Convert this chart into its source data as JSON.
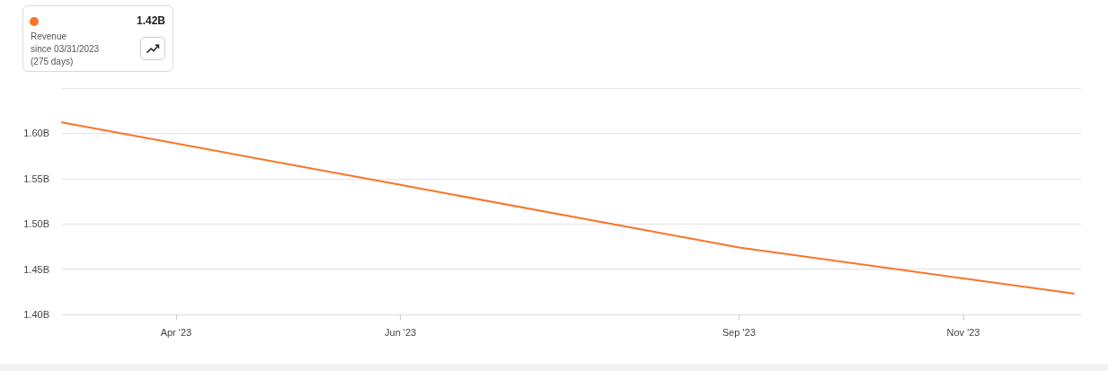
{
  "chart_data": {
    "type": "line",
    "annotations": [
      "1.42B",
      "Revenue",
      "since 03/31/2023",
      "(275 days)"
    ],
    "x": [
      "2023-03-01",
      "2023-06-01",
      "2023-09-01",
      "2023-12-01"
    ],
    "series": [
      {
        "color": "#f97428",
        "values": [
          1.612,
          1.543,
          1.474,
          1.423
        ]
      }
    ],
    "xlim": [
      "2023-03-01",
      "2023-12-03"
    ],
    "xticks": [
      {
        "value": "2023-04-01",
        "label": "Apr '23"
      },
      {
        "value": "2023-06-01",
        "label": "Jun '23"
      },
      {
        "value": "2023-09-01",
        "label": "Sep '23"
      },
      {
        "value": "2023-11-01",
        "label": "Nov '23"
      }
    ],
    "ylim": [
      1.4,
      1.65
    ],
    "yticks": [
      {
        "value": 1.4,
        "label": "1.40B"
      },
      {
        "value": 1.45,
        "label": "1.45B"
      },
      {
        "value": 1.5,
        "label": "1.50B"
      },
      {
        "value": 1.55,
        "label": "1.55B"
      },
      {
        "value": 1.6,
        "label": "1.60B"
      },
      {
        "value": 1.65,
        "label": null
      }
    ],
    "grid": "y",
    "marker": "none",
    "line_style": "solid"
  }
}
